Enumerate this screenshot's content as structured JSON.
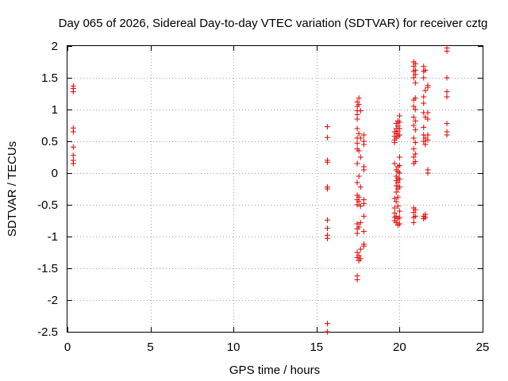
{
  "chart_data": {
    "type": "scatter",
    "title": "Day 065 of 2026, Sidereal Day-to-day VTEC variation (SDTVAR) for receiver cztg",
    "xlabel": "GPS time / hours",
    "ylabel": "SDTVAR / TECUs",
    "xlim": [
      0,
      25
    ],
    "ylim": [
      -2.5,
      2
    ],
    "xticks": [
      0,
      5,
      10,
      15,
      20,
      25
    ],
    "xtick_labels": [
      "0",
      "5",
      "10",
      "15",
      "20",
      "25"
    ],
    "yticks": [
      -2.5,
      -2,
      -1.5,
      -1,
      -0.5,
      0,
      0.5,
      1,
      1.5,
      2
    ],
    "ytick_labels": [
      "-2.5",
      "-2",
      "-1.5",
      "-1",
      "-0.5",
      "0",
      "0.5",
      "1",
      "1.5",
      "2"
    ],
    "grid": true,
    "marker": "+",
    "color": "#e00000",
    "series": [
      {
        "name": "SDTVAR",
        "points": [
          [
            0.35,
            1.37
          ],
          [
            0.35,
            1.33
          ],
          [
            0.35,
            1.28
          ],
          [
            0.35,
            0.71
          ],
          [
            0.35,
            0.65
          ],
          [
            0.35,
            0.41
          ],
          [
            0.35,
            0.28
          ],
          [
            0.35,
            0.2
          ],
          [
            0.35,
            0.15
          ],
          [
            15.65,
            0.73
          ],
          [
            15.65,
            0.56
          ],
          [
            15.65,
            0.2
          ],
          [
            15.65,
            0.17
          ],
          [
            15.65,
            -0.22
          ],
          [
            15.65,
            -0.25
          ],
          [
            15.65,
            -0.74
          ],
          [
            15.65,
            -0.87
          ],
          [
            15.65,
            -0.98
          ],
          [
            15.65,
            -1.03
          ],
          [
            15.65,
            -2.37
          ],
          [
            15.65,
            -2.5
          ],
          [
            17.45,
            1.12
          ],
          [
            17.45,
            1.05
          ],
          [
            17.45,
            0.98
          ],
          [
            17.45,
            0.92
          ],
          [
            17.45,
            0.85
          ],
          [
            17.45,
            0.7
          ],
          [
            17.45,
            0.55
          ],
          [
            17.45,
            0.47
          ],
          [
            17.45,
            0.38
          ],
          [
            17.45,
            0.15
          ],
          [
            17.45,
            -0.15
          ],
          [
            17.45,
            -0.35
          ],
          [
            17.45,
            -0.42
          ],
          [
            17.45,
            -0.5
          ],
          [
            17.45,
            -0.8
          ],
          [
            17.45,
            -0.88
          ],
          [
            17.45,
            -0.95
          ],
          [
            17.45,
            -1.25
          ],
          [
            17.45,
            -1.33
          ],
          [
            17.45,
            -1.62
          ],
          [
            17.45,
            -1.68
          ],
          [
            17.55,
            1.18
          ],
          [
            17.55,
            1.08
          ],
          [
            17.55,
            0.62
          ],
          [
            17.55,
            0.35
          ],
          [
            17.55,
            -0.05
          ],
          [
            17.55,
            -0.38
          ],
          [
            17.55,
            -0.45
          ],
          [
            17.55,
            -0.85
          ],
          [
            17.55,
            -1.3
          ],
          [
            17.55,
            -1.38
          ],
          [
            17.65,
            0.98
          ],
          [
            17.65,
            0.55
          ],
          [
            17.65,
            0.25
          ],
          [
            17.65,
            -0.22
          ],
          [
            17.65,
            -0.52
          ],
          [
            17.65,
            -0.78
          ],
          [
            17.65,
            -1.2
          ],
          [
            17.65,
            -1.35
          ],
          [
            17.85,
            0.6
          ],
          [
            17.85,
            0.5
          ],
          [
            17.85,
            0.45
          ],
          [
            17.85,
            0.1
          ],
          [
            17.85,
            0.05
          ],
          [
            17.85,
            -0.42
          ],
          [
            17.85,
            -0.48
          ],
          [
            17.85,
            -0.68
          ],
          [
            17.85,
            -0.92
          ],
          [
            17.85,
            -1.12
          ],
          [
            17.85,
            -1.15
          ],
          [
            19.7,
            0.65
          ],
          [
            19.7,
            0.58
          ],
          [
            19.7,
            0.52
          ],
          [
            19.7,
            0.48
          ],
          [
            19.7,
            0.15
          ],
          [
            19.7,
            -0.4
          ],
          [
            19.7,
            -0.55
          ],
          [
            19.7,
            -0.63
          ],
          [
            19.7,
            -0.7
          ],
          [
            19.7,
            -0.75
          ],
          [
            19.8,
            0.78
          ],
          [
            19.8,
            0.7
          ],
          [
            19.8,
            0.62
          ],
          [
            19.8,
            0.55
          ],
          [
            19.8,
            0.05
          ],
          [
            19.8,
            -0.05
          ],
          [
            19.8,
            -0.12
          ],
          [
            19.8,
            -0.2
          ],
          [
            19.8,
            -0.3
          ],
          [
            19.8,
            -0.45
          ],
          [
            19.8,
            -0.68
          ],
          [
            19.8,
            -0.78
          ],
          [
            19.9,
            0.82
          ],
          [
            19.9,
            0.74
          ],
          [
            19.9,
            0.66
          ],
          [
            19.9,
            0.58
          ],
          [
            19.9,
            0.1
          ],
          [
            19.9,
            0.02
          ],
          [
            19.9,
            -0.08
          ],
          [
            19.9,
            -0.15
          ],
          [
            19.9,
            -0.25
          ],
          [
            19.9,
            -0.38
          ],
          [
            19.9,
            -0.52
          ],
          [
            19.9,
            -0.72
          ],
          [
            19.9,
            -0.82
          ],
          [
            20.0,
            0.9
          ],
          [
            20.0,
            0.8
          ],
          [
            20.0,
            0.7
          ],
          [
            20.0,
            0.6
          ],
          [
            20.0,
            0.25
          ],
          [
            20.0,
            0.12
          ],
          [
            20.0,
            0.0
          ],
          [
            20.0,
            -0.1
          ],
          [
            20.0,
            -0.22
          ],
          [
            20.0,
            -0.6
          ],
          [
            20.0,
            -0.7
          ],
          [
            20.0,
            -0.8
          ],
          [
            20.85,
            1.75
          ],
          [
            20.85,
            1.68
          ],
          [
            20.85,
            1.6
          ],
          [
            20.85,
            1.5
          ],
          [
            20.85,
            1.15
          ],
          [
            20.85,
            1.05
          ],
          [
            20.85,
            0.88
          ],
          [
            20.85,
            0.75
          ],
          [
            20.85,
            0.55
          ],
          [
            20.85,
            0.38
          ],
          [
            20.85,
            0.25
          ],
          [
            20.85,
            0.15
          ],
          [
            20.85,
            -0.55
          ],
          [
            20.85,
            -0.62
          ],
          [
            20.85,
            -0.7
          ],
          [
            20.85,
            -0.78
          ],
          [
            20.95,
            1.72
          ],
          [
            20.95,
            1.62
          ],
          [
            20.95,
            1.55
          ],
          [
            20.95,
            1.42
          ],
          [
            20.95,
            1.18
          ],
          [
            20.95,
            1.0
          ],
          [
            20.95,
            0.82
          ],
          [
            20.95,
            0.68
          ],
          [
            20.95,
            0.48
          ],
          [
            20.95,
            0.3
          ],
          [
            20.95,
            0.18
          ],
          [
            20.95,
            -0.58
          ],
          [
            20.95,
            -0.68
          ],
          [
            21.45,
            1.68
          ],
          [
            21.45,
            1.6
          ],
          [
            21.45,
            1.5
          ],
          [
            21.45,
            1.2
          ],
          [
            21.45,
            1.1
          ],
          [
            21.45,
            0.95
          ],
          [
            21.45,
            0.72
          ],
          [
            21.45,
            0.6
          ],
          [
            21.45,
            0.5
          ],
          [
            21.45,
            -0.68
          ],
          [
            21.45,
            -0.72
          ],
          [
            21.55,
            1.62
          ],
          [
            21.55,
            1.3
          ],
          [
            21.55,
            0.88
          ],
          [
            21.55,
            0.55
          ],
          [
            21.55,
            0.45
          ],
          [
            21.55,
            -0.65
          ],
          [
            21.55,
            -0.7
          ],
          [
            21.7,
            1.38
          ],
          [
            21.7,
            1.35
          ],
          [
            21.7,
            0.95
          ],
          [
            21.7,
            0.85
          ],
          [
            21.7,
            0.6
          ],
          [
            21.7,
            0.52
          ],
          [
            21.7,
            0.05
          ],
          [
            21.7,
            0.0
          ],
          [
            22.85,
            1.97
          ],
          [
            22.85,
            1.92
          ],
          [
            22.85,
            1.5
          ],
          [
            22.85,
            1.28
          ],
          [
            22.85,
            1.2
          ],
          [
            22.85,
            0.78
          ],
          [
            22.85,
            0.65
          ],
          [
            22.85,
            0.6
          ]
        ]
      }
    ]
  }
}
